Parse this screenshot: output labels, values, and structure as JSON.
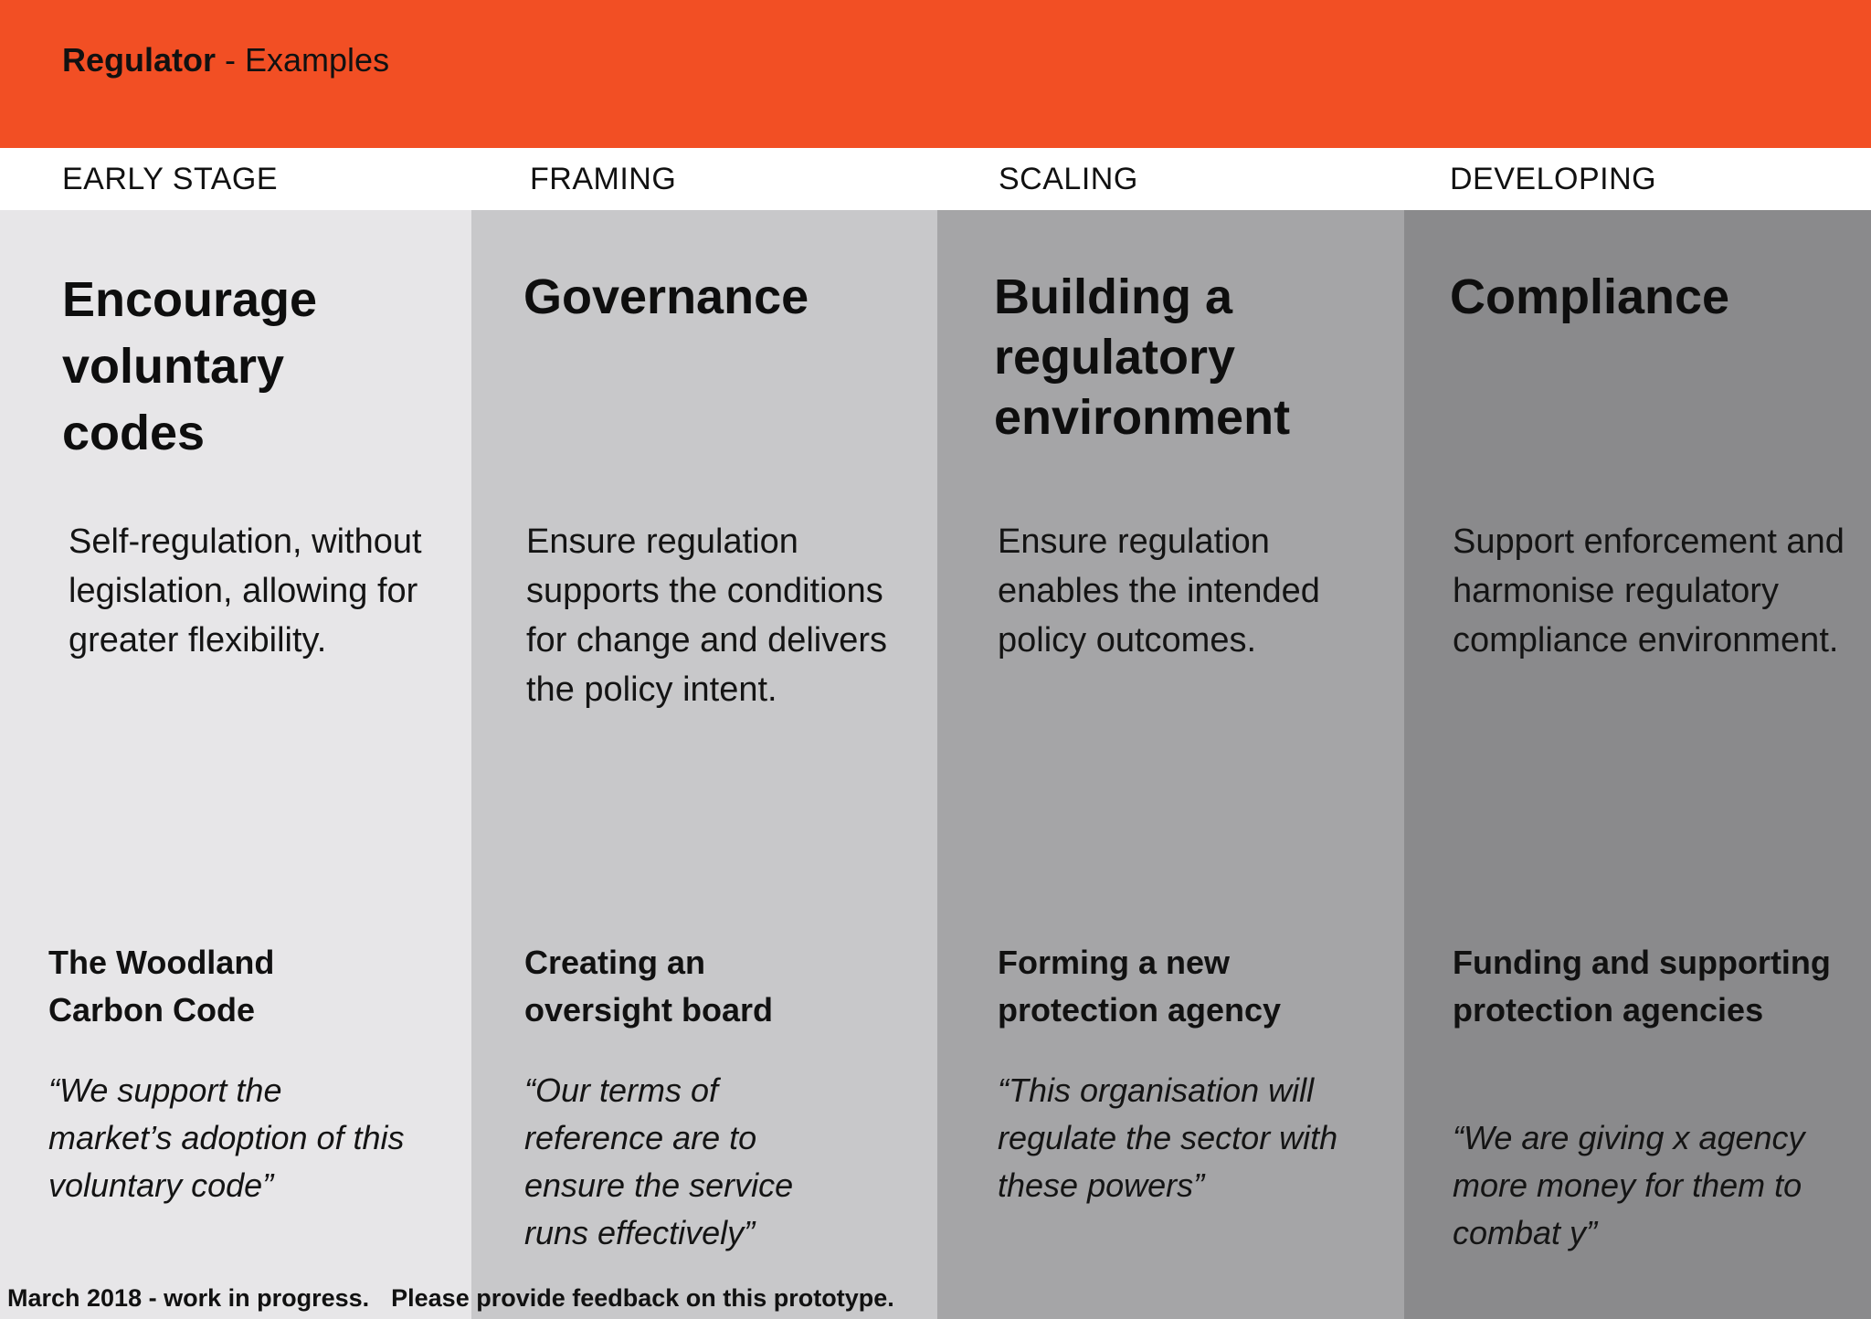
{
  "header": {
    "title_strong": "Regulator",
    "title_rest": " - Examples",
    "background": "#f24f24"
  },
  "stages": [
    {
      "label": "EARLY STAGE",
      "background": "#e7e6e8"
    },
    {
      "label": "FRAMING",
      "background": "#c8c8ca"
    },
    {
      "label": "SCALING",
      "background": "#a5a5a7"
    },
    {
      "label": "DEVELOPING",
      "background": "#8a8a8c"
    }
  ],
  "columns": [
    {
      "title": "Encourage voluntary codes",
      "description": "Self-regulation, without legislation, allowing for greater flexibility.",
      "example_title": "The Woodland Carbon Code",
      "example_quote": "“We support the market’s adoption of this voluntary code”"
    },
    {
      "title": "Governance",
      "description": "Ensure regulation supports the conditions for change and delivers the policy intent.",
      "example_title": "Creating an oversight board",
      "example_quote": "“Our terms of reference are to ensure the service runs effectively”"
    },
    {
      "title": "Building a regulatory environment",
      "description": "Ensure regulation enables the intended policy outcomes.",
      "example_title": "Forming a new protection agency",
      "example_quote": "“This organisation will regulate the sector with these powers”"
    },
    {
      "title": "Compliance",
      "description": "Support enforcement and harmonise regulatory compliance environment.",
      "example_title": "Funding and supporting protection agencies",
      "example_quote": "“We are giving x agency more money for them to combat y”"
    }
  ],
  "footer": {
    "status": "March 2018 - work in progress.",
    "feedback": "Please provide feedback on this prototype."
  }
}
